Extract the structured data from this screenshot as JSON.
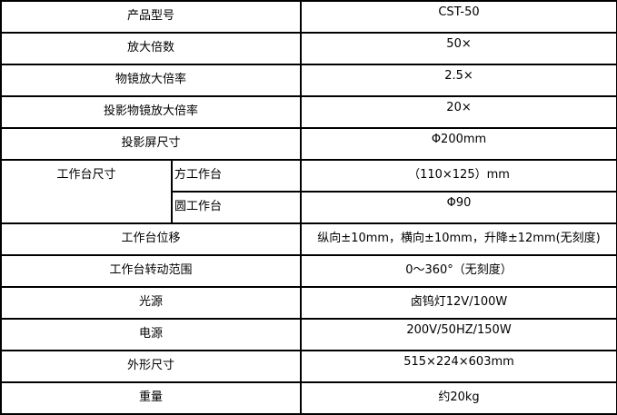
{
  "rows": [
    {
      "label": "产品型号",
      "value": "CST-50"
    },
    {
      "label": "放大倍数",
      "value": "50×"
    },
    {
      "label": "物镜放大倍率",
      "value": "2.5×"
    },
    {
      "label": "投影物镜放大倍率",
      "value": "20×"
    },
    {
      "label": "投影屏尺寸",
      "value": "Φ200mm"
    },
    {
      "label": "工作台位移",
      "value": "纵向±10mm，横向±10mm，升降±12mm(无刻度)"
    },
    {
      "label": "工作台转动范围",
      "value": "0～360°（无刻度）"
    },
    {
      "label": "光源",
      "value": "卤钨灯12V/100W"
    },
    {
      "label": "电源",
      "value": "200V/50HZ/150W"
    },
    {
      "label": "外形尺寸",
      "value": "515×224×603mm"
    },
    {
      "label": "重量",
      "value": "约20kg"
    }
  ],
  "stage": {
    "label": "工作台尺寸",
    "square": {
      "label": "方工作台",
      "value": "（110×125）mm"
    },
    "round": {
      "label": "圆工作台",
      "value": "Φ90"
    }
  }
}
